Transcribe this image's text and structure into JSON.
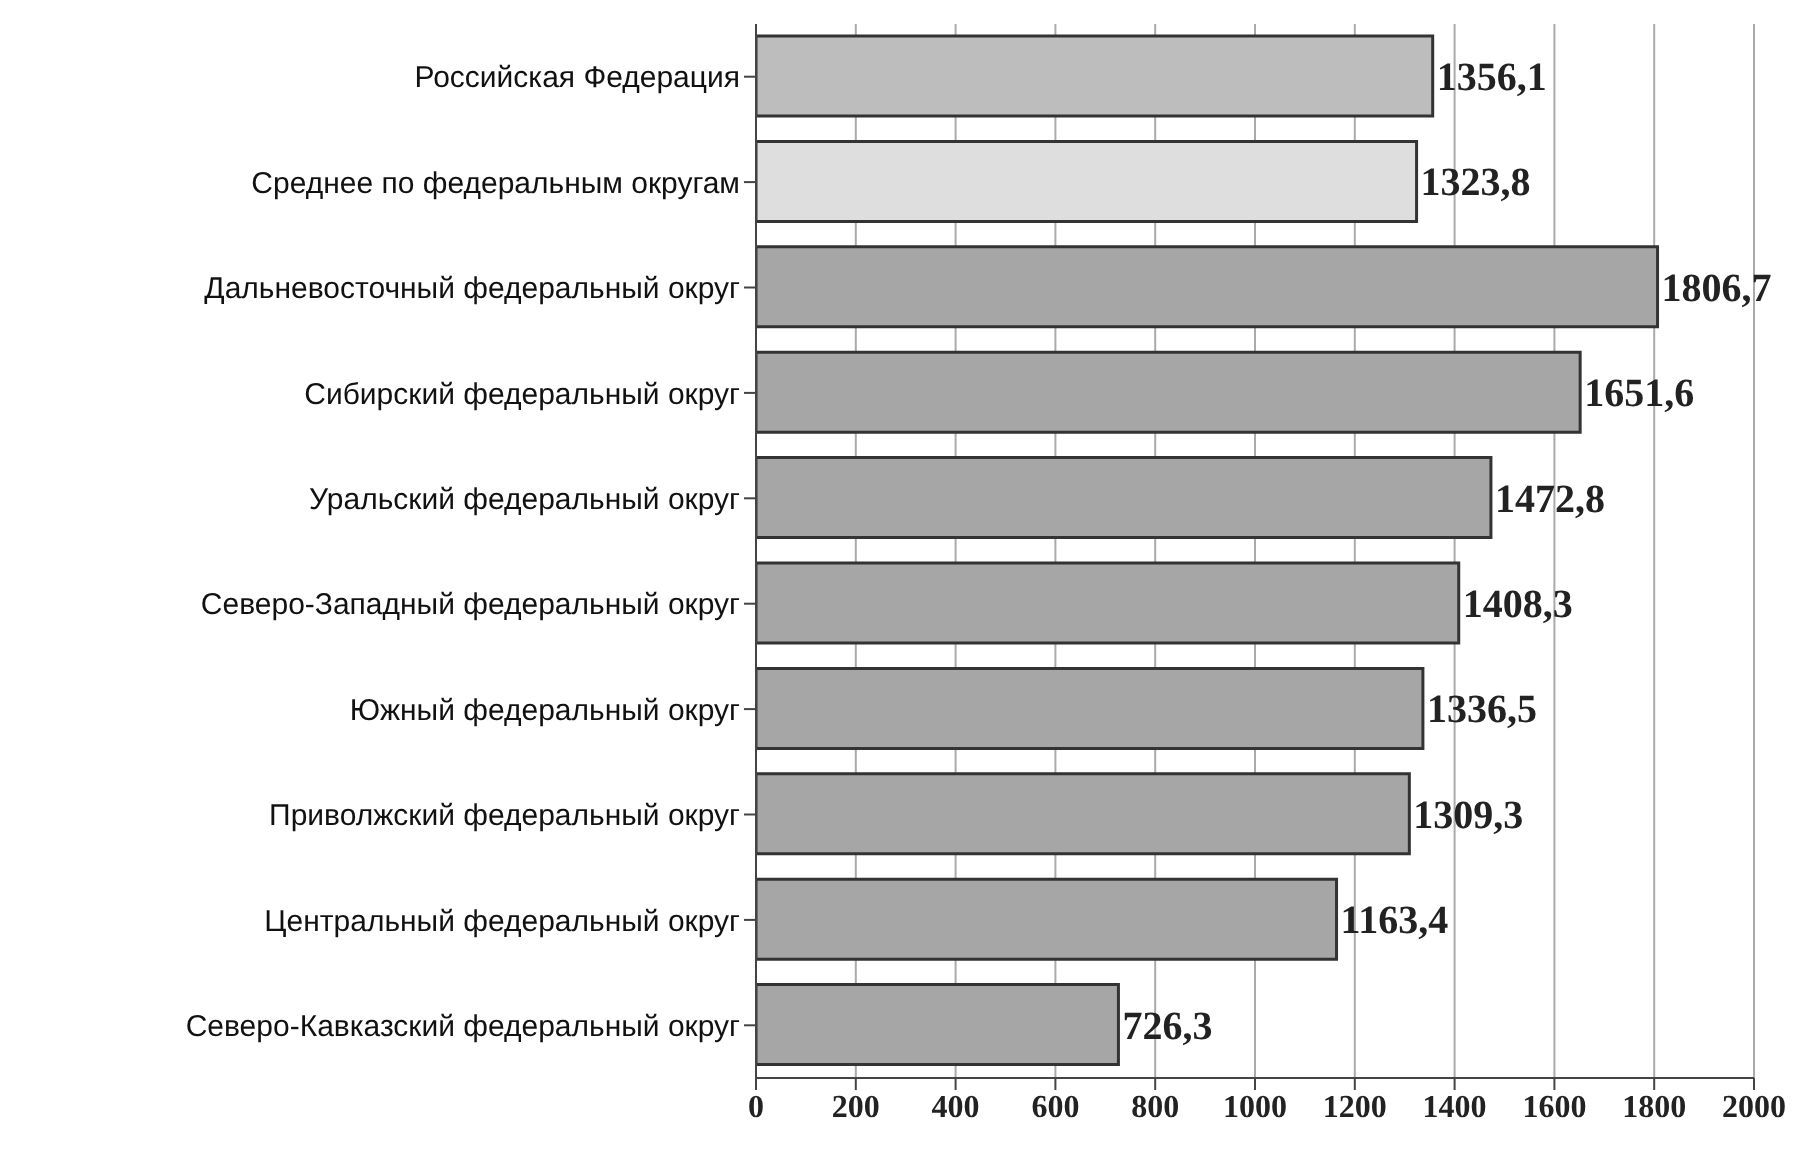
{
  "chart_data": {
    "type": "bar",
    "orientation": "horizontal",
    "categories": [
      "Российская Федерация",
      "Среднее по федеральным округам",
      "Дальневосточный федеральный округ",
      "Сибирский федеральный округ",
      "Уральский федеральный округ",
      "Северо-Западный федеральный округ",
      "Южный федеральный округ",
      "Приволжский федеральный округ",
      "Центральный федеральный округ",
      "Северо-Кавказский федеральный округ"
    ],
    "values": [
      1356.1,
      1323.8,
      1806.7,
      1651.6,
      1472.8,
      1408.3,
      1336.5,
      1309.3,
      1163.4,
      726.3
    ],
    "colors": [
      "#bdbdbd",
      "#dedede",
      "#a6a6a6",
      "#a6a6a6",
      "#a6a6a6",
      "#a6a6a6",
      "#a6a6a6",
      "#a6a6a6",
      "#a6a6a6",
      "#a6a6a6"
    ],
    "value_labels": [
      "1356,1",
      "1323,8",
      "1806,7",
      "1651,6",
      "1472,8",
      "1408,3",
      "1336,5",
      "1309,3",
      "1163,4",
      "726,3"
    ],
    "xlim": [
      0,
      2000
    ],
    "xticks": [
      0,
      200,
      400,
      600,
      800,
      1000,
      1200,
      1400,
      1600,
      1800,
      2000
    ],
    "grid": "x"
  }
}
